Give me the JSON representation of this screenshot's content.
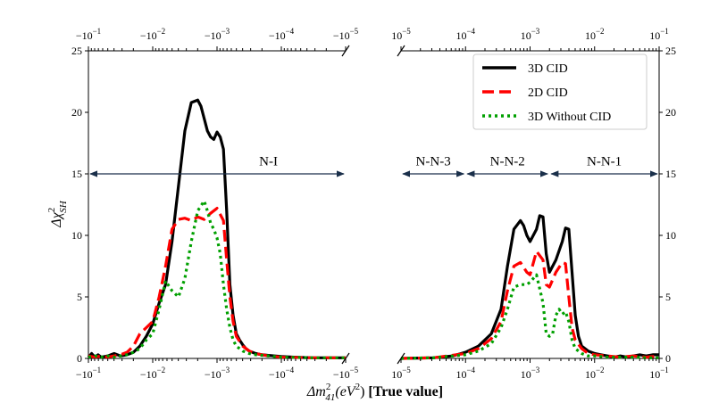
{
  "chart_data": {
    "type": "line",
    "ylabel": "Δχ²_SH",
    "xlabel": "Δm²₄₁(eV²) [True value]",
    "xlabel_main": "Δm",
    "xlabel_sup": "2",
    "xlabel_sub": "41",
    "xlabel_unit_open": "(eV",
    "xlabel_unit_sup": "2",
    "xlabel_unit_close": ")",
    "xlabel_bold": "[True value]",
    "ylabel_main": "Δχ",
    "ylabel_sup": "2",
    "ylabel_sub": "SH",
    "ylim": [
      0,
      25
    ],
    "y_ticks": [
      0,
      5,
      10,
      15,
      20,
      25
    ],
    "y_tick_labels": [
      "0",
      "5",
      "10",
      "15",
      "20",
      "25"
    ],
    "panels": [
      {
        "name": "negative",
        "x_log_range": [
          -1,
          -5
        ],
        "x_tick_exponents": [
          -1,
          -2,
          -3,
          -4,
          -5
        ],
        "x_tick_base": "−10",
        "x_tick_sup": [
          "−1",
          "−2",
          "−3",
          "−4",
          "−5"
        ]
      },
      {
        "name": "positive",
        "x_log_range": [
          -5,
          -1
        ],
        "x_tick_exponents": [
          -5,
          -4,
          -3,
          -2,
          -1
        ],
        "x_tick_base": "10",
        "x_tick_sup": [
          "−5",
          "−4",
          "−3",
          "−2",
          "−1"
        ]
      }
    ],
    "series": [
      {
        "name": "3D CID",
        "color": "#000000",
        "dash": "solid",
        "left": {
          "x": [
            -1.0,
            -1.05,
            -1.1,
            -1.15,
            -1.2,
            -1.3,
            -1.4,
            -1.5,
            -1.6,
            -1.7,
            -1.8,
            -1.9,
            -2.0,
            -2.1,
            -2.2,
            -2.3,
            -2.4,
            -2.5,
            -2.6,
            -2.7,
            -2.75,
            -2.8,
            -2.85,
            -2.9,
            -2.95,
            -3.0,
            -3.05,
            -3.1,
            -3.15,
            -3.2,
            -3.25,
            -3.3,
            -3.35,
            -3.4,
            -3.45,
            -3.5,
            -3.6,
            -3.7,
            -3.8,
            -3.9,
            -4.0,
            -4.2,
            -4.5,
            -5.0
          ],
          "y": [
            0.1,
            0.4,
            0.1,
            0.3,
            0.1,
            0.2,
            0.4,
            0.2,
            0.3,
            0.5,
            1.0,
            1.8,
            2.8,
            4.5,
            6.0,
            9.5,
            14.0,
            18.5,
            20.8,
            21.0,
            20.5,
            19.5,
            18.5,
            18.0,
            17.8,
            18.4,
            18.0,
            17.0,
            12.0,
            6.0,
            3.5,
            2.0,
            1.5,
            1.1,
            0.8,
            0.6,
            0.4,
            0.3,
            0.25,
            0.2,
            0.15,
            0.1,
            0.05,
            0.05
          ]
        },
        "right": {
          "x": [
            -5.0,
            -4.5,
            -4.2,
            -4.0,
            -3.8,
            -3.6,
            -3.45,
            -3.35,
            -3.25,
            -3.15,
            -3.1,
            -3.05,
            -3.0,
            -2.9,
            -2.85,
            -2.8,
            -2.75,
            -2.7,
            -2.6,
            -2.5,
            -2.45,
            -2.4,
            -2.35,
            -2.3,
            -2.25,
            -2.2,
            -2.1,
            -2.0,
            -1.9,
            -1.8,
            -1.7,
            -1.6,
            -1.5,
            -1.4,
            -1.3,
            -1.2,
            -1.1,
            -1.0
          ],
          "y": [
            0.0,
            0.05,
            0.2,
            0.5,
            1.0,
            2.0,
            4.0,
            7.5,
            10.5,
            11.2,
            10.8,
            10.0,
            9.5,
            10.5,
            11.6,
            11.5,
            8.5,
            7.0,
            8.0,
            9.5,
            10.6,
            10.5,
            7.0,
            3.5,
            1.8,
            1.0,
            0.6,
            0.4,
            0.3,
            0.2,
            0.1,
            0.2,
            0.1,
            0.2,
            0.3,
            0.2,
            0.3,
            0.3
          ]
        }
      },
      {
        "name": "2D CID",
        "color": "#ff0000",
        "dash": "dashed",
        "left": {
          "x": [
            -1.0,
            -1.1,
            -1.2,
            -1.3,
            -1.4,
            -1.5,
            -1.6,
            -1.7,
            -1.8,
            -1.9,
            -2.0,
            -2.1,
            -2.2,
            -2.3,
            -2.4,
            -2.5,
            -2.6,
            -2.7,
            -2.8,
            -2.9,
            -3.0,
            -3.1,
            -3.15,
            -3.2,
            -3.25,
            -3.3,
            -3.4,
            -3.5,
            -3.6,
            -3.7,
            -3.8,
            -4.0,
            -4.5,
            -5.0
          ],
          "y": [
            0.2,
            0.1,
            0.2,
            0.1,
            0.2,
            0.3,
            0.5,
            1.0,
            2.0,
            2.5,
            3.0,
            5.0,
            7.5,
            10.5,
            11.3,
            11.4,
            11.2,
            11.5,
            11.3,
            11.8,
            12.2,
            11.2,
            8.0,
            5.0,
            3.0,
            1.8,
            1.0,
            0.6,
            0.4,
            0.3,
            0.2,
            0.1,
            0.05,
            0.05
          ]
        },
        "right": {
          "x": [
            -5.0,
            -4.5,
            -4.0,
            -3.8,
            -3.6,
            -3.45,
            -3.35,
            -3.25,
            -3.15,
            -3.05,
            -3.0,
            -2.9,
            -2.8,
            -2.75,
            -2.7,
            -2.6,
            -2.5,
            -2.45,
            -2.4,
            -2.35,
            -2.3,
            -2.2,
            -2.1,
            -2.0,
            -1.8,
            -1.6,
            -1.4,
            -1.2,
            -1.0
          ],
          "y": [
            0.0,
            0.05,
            0.4,
            0.8,
            1.6,
            3.0,
            5.5,
            7.5,
            7.8,
            7.0,
            6.8,
            8.7,
            8.0,
            6.0,
            5.8,
            7.0,
            7.8,
            7.7,
            5.0,
            2.5,
            1.5,
            0.8,
            0.4,
            0.3,
            0.2,
            0.1,
            0.2,
            0.1,
            0.2
          ]
        }
      },
      {
        "name": "3D Without CID",
        "color": "#00a000",
        "dash": "dotted",
        "left": {
          "x": [
            -1.0,
            -1.1,
            -1.2,
            -1.3,
            -1.4,
            -1.5,
            -1.6,
            -1.7,
            -1.8,
            -1.9,
            -2.0,
            -2.1,
            -2.2,
            -2.3,
            -2.4,
            -2.5,
            -2.6,
            -2.7,
            -2.8,
            -2.85,
            -2.9,
            -2.95,
            -3.0,
            -3.05,
            -3.1,
            -3.15,
            -3.2,
            -3.25,
            -3.3,
            -3.4,
            -3.5,
            -3.6,
            -3.8,
            -4.0,
            -4.5,
            -5.0
          ],
          "y": [
            0.1,
            0.2,
            0.1,
            0.2,
            0.1,
            0.2,
            0.3,
            0.5,
            0.8,
            1.5,
            2.0,
            4.0,
            6.3,
            5.5,
            5.0,
            6.5,
            9.5,
            12.0,
            12.8,
            12.0,
            11.0,
            10.5,
            9.8,
            8.5,
            6.0,
            4.0,
            2.5,
            1.5,
            1.0,
            0.6,
            0.4,
            0.3,
            0.2,
            0.1,
            0.05,
            0.05
          ]
        },
        "right": {
          "x": [
            -5.0,
            -4.5,
            -4.0,
            -3.8,
            -3.6,
            -3.45,
            -3.35,
            -3.25,
            -3.15,
            -3.05,
            -3.0,
            -2.9,
            -2.8,
            -2.75,
            -2.7,
            -2.65,
            -2.6,
            -2.55,
            -2.5,
            -2.45,
            -2.4,
            -2.35,
            -2.3,
            -2.2,
            -2.1,
            -2.0,
            -1.8,
            -1.6,
            -1.4,
            -1.2,
            -1.0
          ],
          "y": [
            0.0,
            0.05,
            0.3,
            0.6,
            1.2,
            2.5,
            4.0,
            5.8,
            6.0,
            6.0,
            6.2,
            6.8,
            4.5,
            2.0,
            1.8,
            2.0,
            3.5,
            4.0,
            3.6,
            3.8,
            3.0,
            1.5,
            0.8,
            0.4,
            0.2,
            0.2,
            0.1,
            0.1,
            0.1,
            0.05,
            0.05
          ]
        }
      }
    ],
    "annotations": [
      {
        "text": "N-I",
        "panel": "negative",
        "x_from": -1,
        "x_to": -5,
        "y": 15,
        "text_x": -3.8,
        "text_y": 15.7
      },
      {
        "text": "N-N-3",
        "panel": "positive",
        "x_from": -5,
        "x_to": -4,
        "y": 15,
        "text_x": -4.5,
        "text_y": 15.7
      },
      {
        "text": "N-N-2",
        "panel": "positive",
        "x_from": -4,
        "x_to": -2.7,
        "y": 15,
        "text_x": -3.35,
        "text_y": 15.7
      },
      {
        "text": "N-N-1",
        "panel": "positive",
        "x_from": -2.7,
        "x_to": -1,
        "y": 15,
        "text_x": -1.85,
        "text_y": 15.7
      }
    ],
    "legend": {
      "location": "top-right",
      "entries": [
        "3D CID",
        "2D CID",
        "3D Without CID"
      ]
    }
  }
}
